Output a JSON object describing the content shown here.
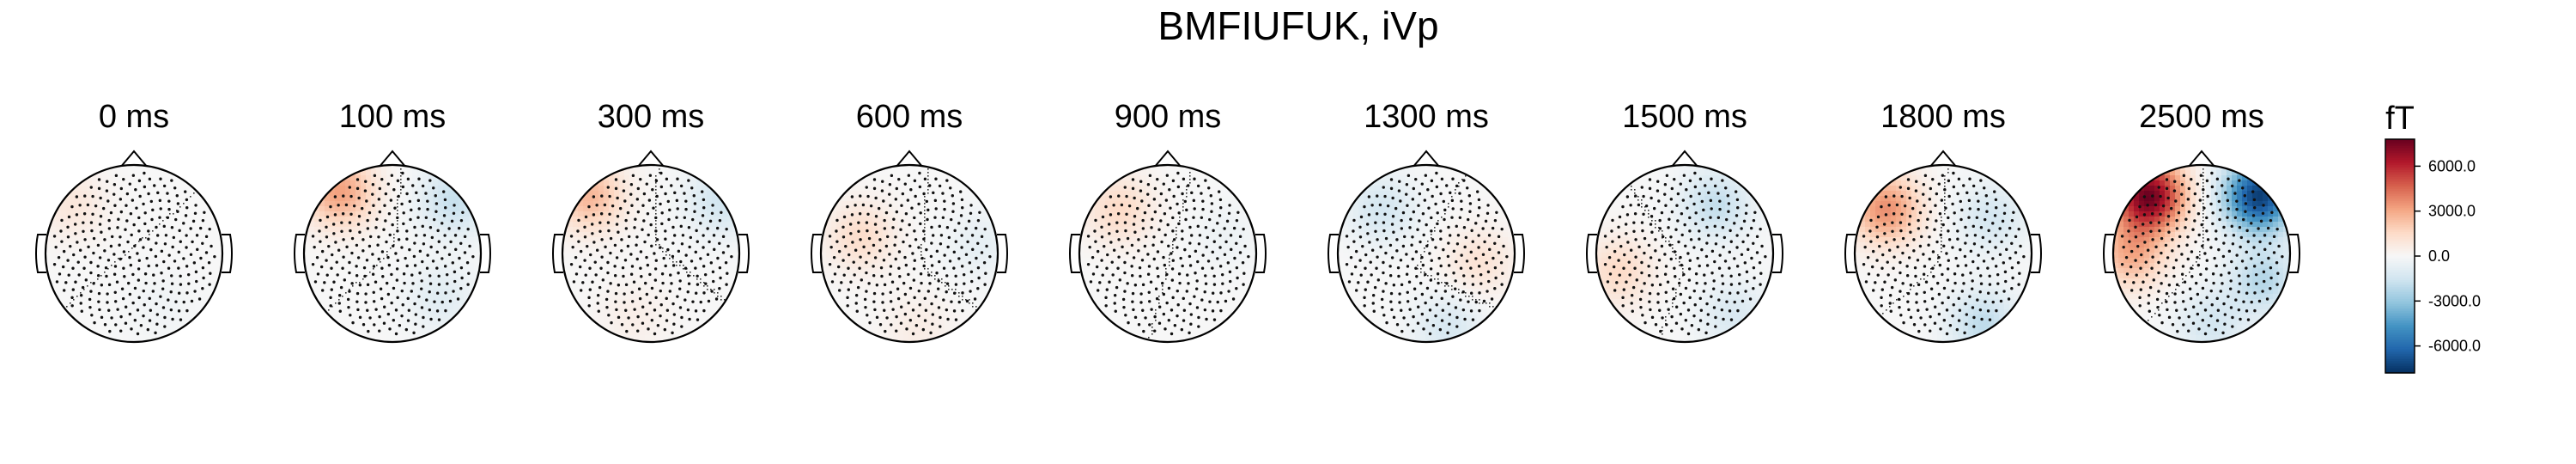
{
  "title": "BMFIUFUK, iVp",
  "chart_data": {
    "type": "heatmap",
    "title": "BMFIUFUK, iVp",
    "unit": "fT",
    "colormap": "RdBu_r",
    "clim": [
      -7800,
      7800
    ],
    "colorbar_ticks": [
      "6000.0",
      "3000.0",
      "0.0",
      "-3000.0",
      "-6000.0"
    ],
    "colorbar_tick_values": [
      6000,
      3000,
      0,
      -3000,
      -6000
    ],
    "panels": [
      {
        "label": "0 ms",
        "sources": [
          {
            "x": -0.7,
            "y": 0.55,
            "amp": 900
          },
          {
            "x": 0.3,
            "y": -0.6,
            "amp": -300
          }
        ]
      },
      {
        "label": "100 ms",
        "sources": [
          {
            "x": -0.6,
            "y": 0.7,
            "amp": 3200
          },
          {
            "x": 0.7,
            "y": 0.6,
            "amp": -1800
          },
          {
            "x": 0.55,
            "y": -0.5,
            "amp": -900
          }
        ]
      },
      {
        "label": "300 ms",
        "sources": [
          {
            "x": -0.7,
            "y": 0.65,
            "amp": 2600
          },
          {
            "x": 0.8,
            "y": 0.6,
            "amp": -1500
          },
          {
            "x": -0.2,
            "y": -0.7,
            "amp": 500
          }
        ]
      },
      {
        "label": "600 ms",
        "sources": [
          {
            "x": -0.55,
            "y": 0.2,
            "amp": 1400
          },
          {
            "x": 0.8,
            "y": 0.1,
            "amp": -700
          },
          {
            "x": 0.1,
            "y": -0.85,
            "amp": 600
          }
        ]
      },
      {
        "label": "900 ms",
        "sources": [
          {
            "x": -0.55,
            "y": 0.5,
            "amp": 1500
          },
          {
            "x": 0.65,
            "y": 0.2,
            "amp": -400
          }
        ]
      },
      {
        "label": "1300 ms",
        "sources": [
          {
            "x": -0.5,
            "y": 0.5,
            "amp": -1400
          },
          {
            "x": 0.6,
            "y": -0.1,
            "amp": 1100
          },
          {
            "x": 0.25,
            "y": -0.85,
            "amp": -1300
          }
        ]
      },
      {
        "label": "1500 ms",
        "sources": [
          {
            "x": -0.75,
            "y": -0.2,
            "amp": 1500
          },
          {
            "x": 0.35,
            "y": 0.55,
            "amp": -1900
          },
          {
            "x": 0.55,
            "y": -0.7,
            "amp": -1200
          }
        ]
      },
      {
        "label": "1800 ms",
        "sources": [
          {
            "x": -0.65,
            "y": 0.5,
            "amp": 3600
          },
          {
            "x": 0.55,
            "y": 0.4,
            "amp": -1400
          },
          {
            "x": 0.45,
            "y": -0.8,
            "amp": -2000
          }
        ]
      },
      {
        "label": "2500 ms",
        "sources": [
          {
            "x": -0.6,
            "y": 0.65,
            "amp": 7600
          },
          {
            "x": 0.65,
            "y": 0.65,
            "amp": -7400
          },
          {
            "x": -0.8,
            "y": 0.0,
            "amp": 2800
          },
          {
            "x": 0.7,
            "y": -0.3,
            "amp": -2200
          },
          {
            "x": 0.1,
            "y": -0.8,
            "amp": -1400
          }
        ]
      }
    ]
  }
}
